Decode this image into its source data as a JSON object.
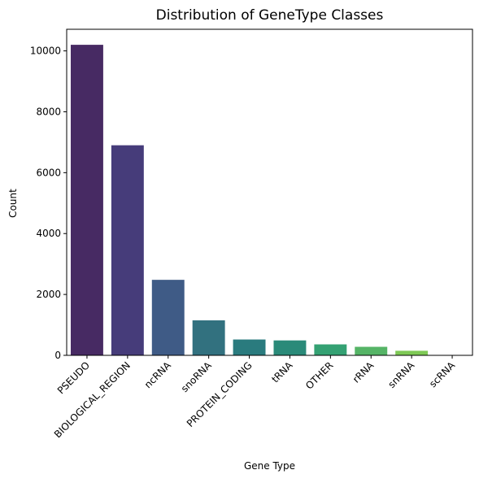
{
  "chart_data": {
    "type": "bar",
    "title": "Distribution of GeneType Classes",
    "xlabel": "Gene Type",
    "ylabel": "Count",
    "categories": [
      "PSEUDO",
      "BIOLOGICAL_REGION",
      "ncRNA",
      "snoRNA",
      "PROTEIN_CODING",
      "tRNA",
      "OTHER",
      "rRNA",
      "snRNA",
      "scRNA"
    ],
    "values": [
      10200,
      6900,
      2480,
      1150,
      520,
      490,
      360,
      280,
      150,
      10
    ],
    "colors": [
      "#472a63",
      "#463c7a",
      "#3f5b86",
      "#32717f",
      "#2a7b7e",
      "#2a8a79",
      "#34a173",
      "#55b466",
      "#7ec955",
      "#d4e236"
    ],
    "yticks": [
      0,
      2000,
      4000,
      6000,
      8000,
      10000
    ],
    "ylim": [
      0,
      10710
    ],
    "grid": false,
    "legend": false
  }
}
